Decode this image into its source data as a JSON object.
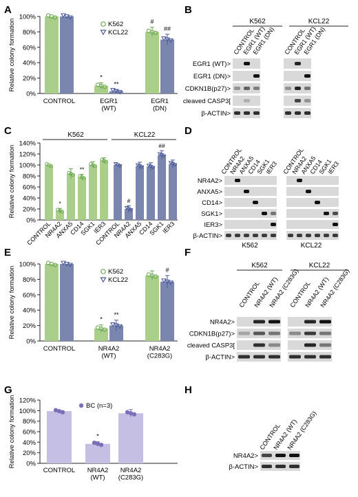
{
  "colors": {
    "k562": "#a9cf8b",
    "k562_dot": "#6aa84f",
    "kcl22": "#7b86ae",
    "kcl22_dot": "#4a5a9a",
    "bc": "#c4bfe3",
    "bc_dot": "#7a6fb8",
    "blot_bg": "#d9d9d9",
    "band": "#111111"
  },
  "panels": {
    "A": {
      "letter": "A"
    },
    "B": {
      "letter": "B"
    },
    "C": {
      "letter": "C"
    },
    "D": {
      "letter": "D"
    },
    "E": {
      "letter": "E"
    },
    "F": {
      "letter": "F"
    },
    "G": {
      "letter": "G"
    },
    "H": {
      "letter": "H"
    }
  },
  "chart_data": [
    {
      "panel": "A",
      "type": "bar",
      "ylabel": "Relative colony formation",
      "ylim": [
        0,
        100
      ],
      "yticks": [
        "0%",
        "20%",
        "40%",
        "60%",
        "80%",
        "100%"
      ],
      "categories": [
        "CONTROL",
        "EGR1\n(WT)",
        "EGR1\n(DN)"
      ],
      "legend": [
        "K562",
        "KCL22"
      ],
      "series": [
        {
          "name": "K562",
          "values": [
            100,
            10,
            80
          ],
          "err": [
            0,
            4,
            6
          ],
          "marks": [
            "",
            "*",
            "#"
          ]
        },
        {
          "name": "KCL22",
          "values": [
            100,
            3,
            70
          ],
          "err": [
            0,
            2,
            7
          ],
          "marks": [
            "",
            "**",
            "##"
          ]
        }
      ]
    },
    {
      "panel": "C",
      "type": "bar",
      "ylabel": "Relative colony formation",
      "ylim": [
        0,
        140
      ],
      "yticks": [
        "0%",
        "20%",
        "40%",
        "60%",
        "80%",
        "100%",
        "120%",
        "140%"
      ],
      "groups": [
        "K562",
        "KCL22"
      ],
      "categories": [
        "CONTROL",
        "NR4A2",
        "ANXA5",
        "CD14",
        "SGK1",
        "IER3"
      ],
      "series": [
        {
          "name": "K562",
          "values": [
            100,
            17,
            84,
            78,
            100,
            108
          ],
          "err": [
            0,
            4,
            9,
            5,
            6,
            5
          ],
          "marks": [
            "",
            "*",
            "",
            "**",
            "",
            ""
          ]
        },
        {
          "name": "KCL22",
          "values": [
            100,
            20,
            98,
            97,
            118,
            102
          ],
          "err": [
            0,
            6,
            7,
            7,
            8,
            7
          ],
          "marks": [
            "",
            "#",
            "",
            "",
            "##",
            ""
          ]
        }
      ]
    },
    {
      "panel": "E",
      "type": "bar",
      "ylabel": "Relative colony formation",
      "ylim": [
        0,
        100
      ],
      "yticks": [
        "0%",
        "20%",
        "40%",
        "60%",
        "80%",
        "100%"
      ],
      "categories": [
        "CONTROL",
        "NR4A2\n(WT)",
        "NR4A2\n(C283G)"
      ],
      "legend": [
        "K562",
        "KCL22"
      ],
      "series": [
        {
          "name": "K562",
          "values": [
            100,
            16,
            85
          ],
          "err": [
            0,
            5,
            6
          ],
          "marks": [
            "",
            "*",
            ""
          ]
        },
        {
          "name": "KCL22",
          "values": [
            100,
            20,
            77
          ],
          "err": [
            0,
            7,
            8
          ],
          "marks": [
            "",
            "**",
            "#"
          ]
        }
      ]
    },
    {
      "panel": "G",
      "type": "bar",
      "ylabel": "Relative colony formation",
      "ylim": [
        0,
        120
      ],
      "yticks": [
        "0%",
        "20%",
        "40%",
        "60%",
        "80%",
        "100%",
        "120%"
      ],
      "categories": [
        "CONTROL",
        "NR4A2\n(WT)",
        "NR4A2\n(C283G)"
      ],
      "legend": [
        "BC (n=3)"
      ],
      "series": [
        {
          "name": "BC (n=3)",
          "values": [
            99,
            37,
            95
          ],
          "err": [
            0,
            4,
            7
          ],
          "marks": [
            "",
            "*",
            ""
          ]
        }
      ]
    }
  ],
  "blots": {
    "B": {
      "groups": [
        "K562",
        "KCL22"
      ],
      "lanes": [
        "CONTROL",
        "EGR1 (WT)",
        "EGR1 (DN)",
        "CONTROL",
        "EGR1 (WT)",
        "EGR1 (DN)"
      ],
      "rows": [
        "EGR1 (WT)>",
        "EGR1 (DN)>",
        "CDKN1B(p27)>",
        "cleaved CASP3[",
        "β-ACTIN>"
      ]
    },
    "D": {
      "groups": [
        "K562",
        "KCL22"
      ],
      "lanes": [
        "CONTROL",
        "NR4A2",
        "ANXA5",
        "CD14",
        "SGK1",
        "IER3",
        "CONTROL",
        "NR4A2",
        "ANXA5",
        "CD14",
        "SGK1",
        "IER3"
      ],
      "rows": [
        "NR4A2>",
        "ANXA5>",
        "CD14>",
        "SGK1>",
        "IER3>",
        "β-ACTIN>"
      ]
    },
    "F": {
      "groups": [
        "K562",
        "KCL22"
      ],
      "lanes": [
        "CONTROL",
        "NR4A2 (WT)",
        "NR4A2 (C283G)",
        "CONTROL",
        "NR4A2 (WT)",
        "NR4A2 (C283G)"
      ],
      "rows": [
        "NR4A2>",
        "CDKN1B(p27)>",
        "cleaved CASP3[",
        "β-ACTIN>"
      ]
    },
    "H": {
      "lanes": [
        "CONTROL",
        "NR4A2 (WT)",
        "NR4A2 (C283G)"
      ],
      "rows": [
        "NR4A2>",
        "β-ACTIN>"
      ]
    }
  }
}
